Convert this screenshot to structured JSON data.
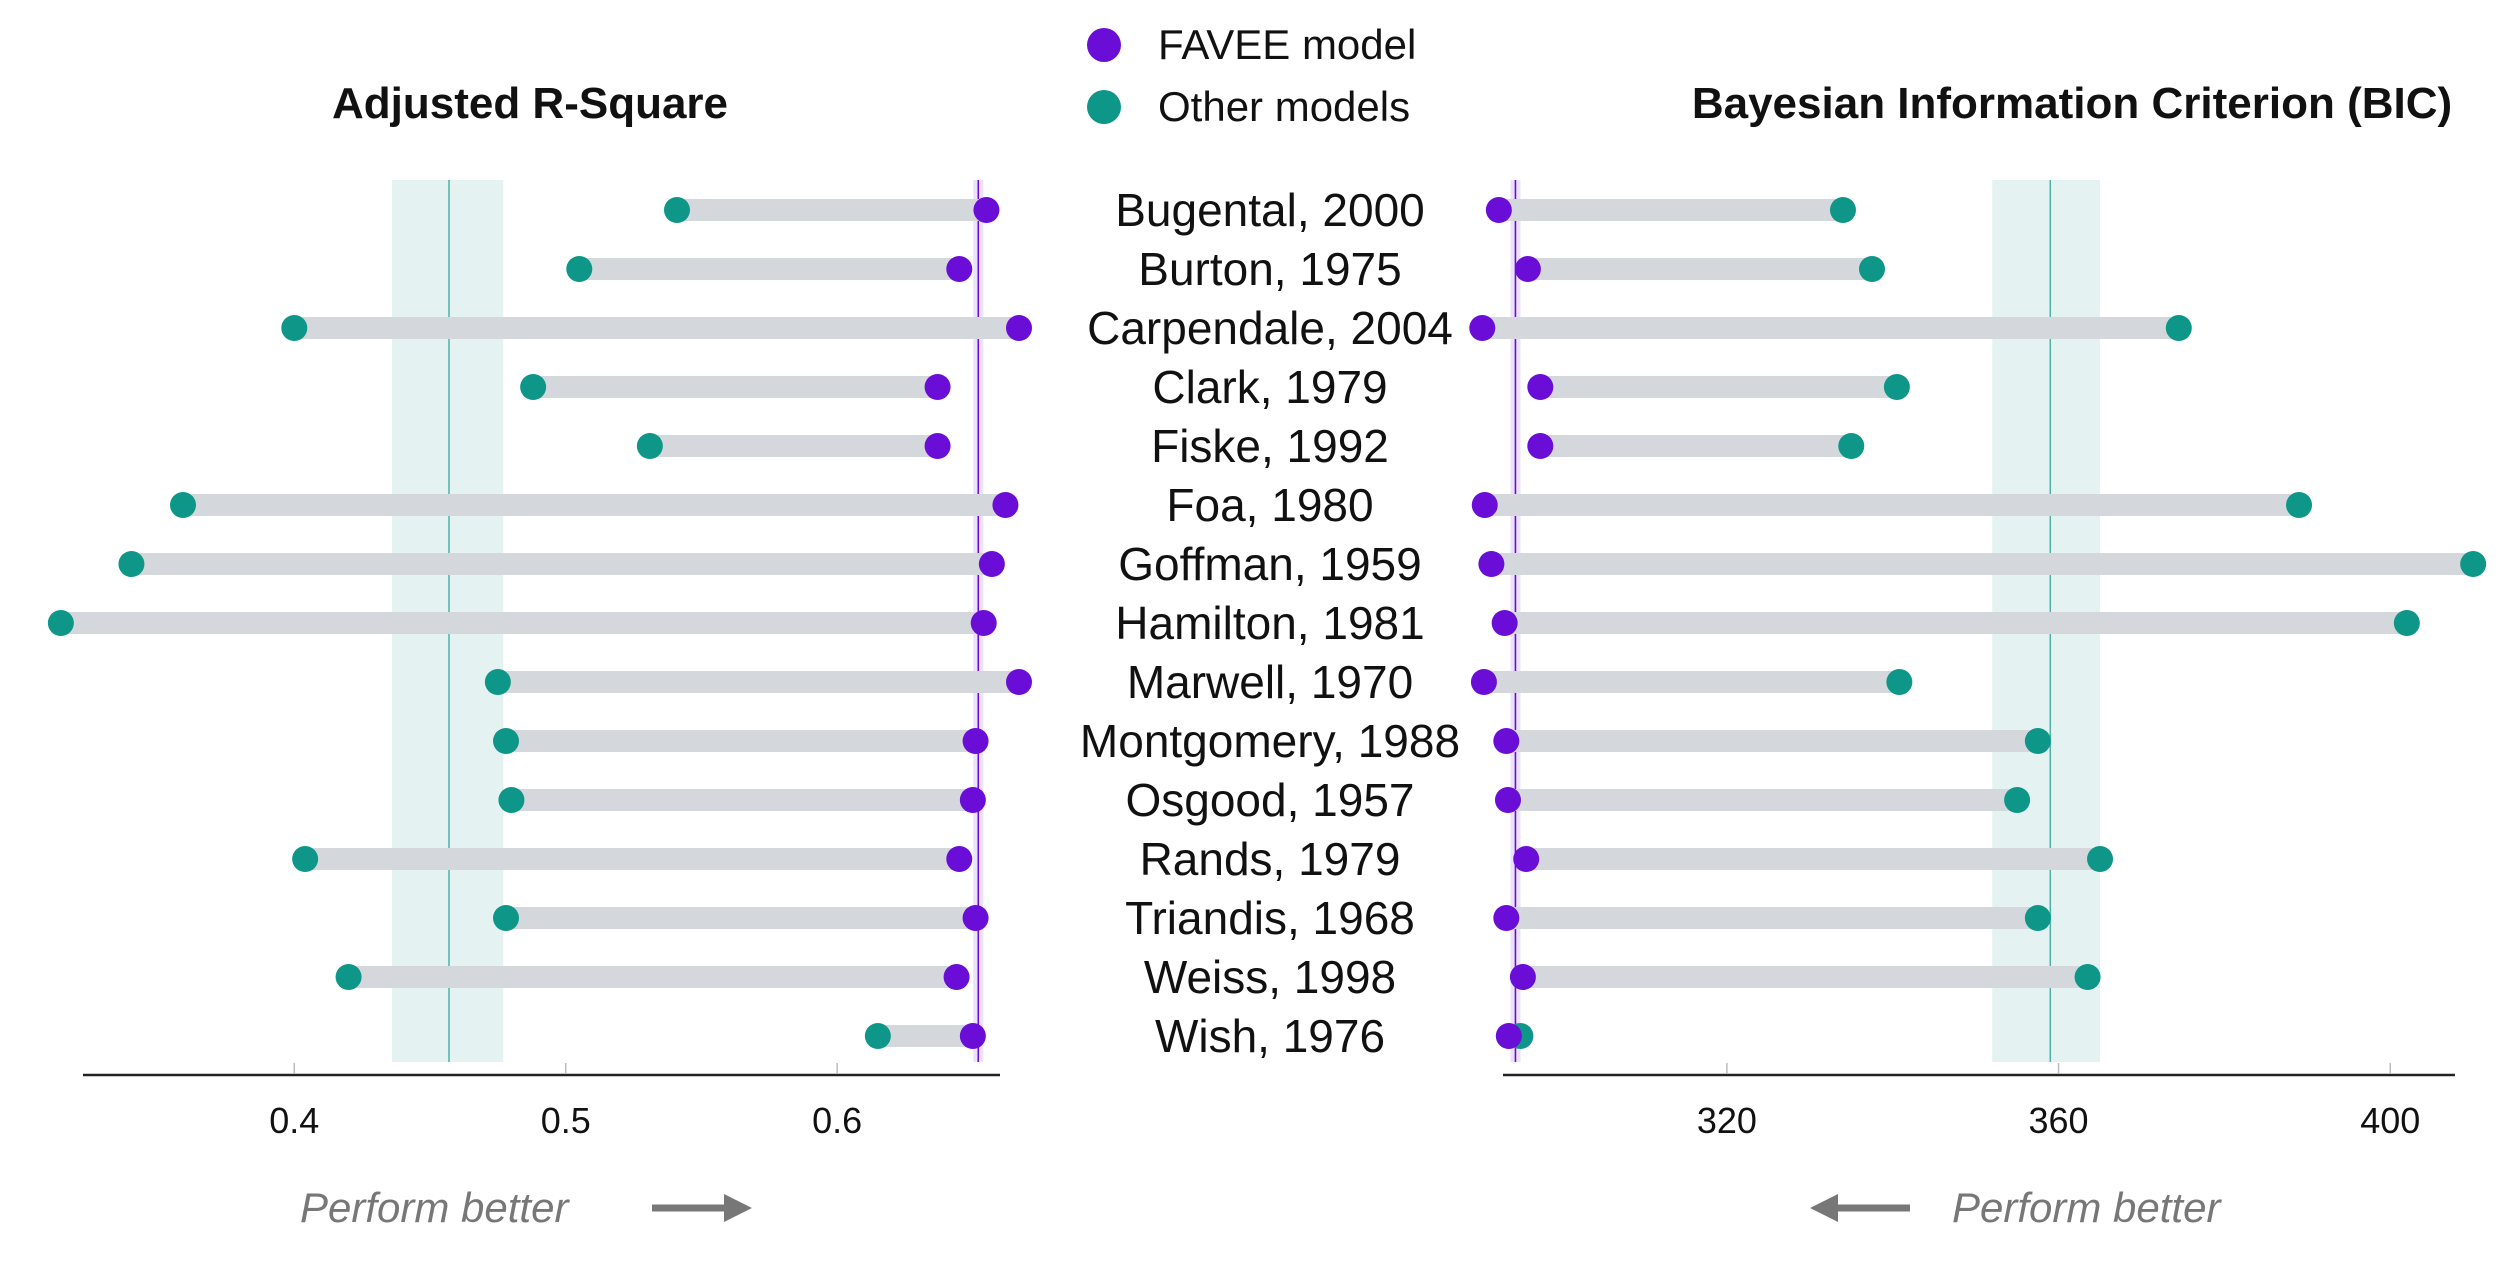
{
  "legend": {
    "favee": "FAVEE model",
    "other": "Other models"
  },
  "colors": {
    "favee": "#6a0dd6",
    "other": "#0e9688",
    "connector": "#d4d8dc",
    "band": "#e4f3f1",
    "axis": "#222222",
    "note": "#777777"
  },
  "notes": {
    "left": "Perform better",
    "right": "Perform better"
  },
  "chart_data": [
    {
      "type": "dumbbell",
      "title": "Adjusted R-Square",
      "xlim": [
        0.31,
        0.66
      ],
      "xticks": [
        0.4,
        0.5,
        0.6
      ],
      "tick_labels": [
        "0.4",
        "0.5",
        "0.6"
      ],
      "favee_reference": 0.652,
      "other_mean": 0.457,
      "other_band": [
        0.436,
        0.477
      ],
      "better_direction": "right",
      "categories": [
        "Bugental, 2000",
        "Burton, 1975",
        "Carpendale, 2004",
        "Clark, 1979",
        "Fiske, 1992",
        "Foa, 1980",
        "Goffman, 1959",
        "Hamilton, 1981",
        "Marwell, 1970",
        "Montgomery, 1988",
        "Osgood, 1957",
        "Rands, 1979",
        "Triandis, 1968",
        "Weiss, 1998",
        "Wish, 1976"
      ],
      "series": [
        {
          "name": "FAVEE model",
          "values": [
            0.655,
            0.645,
            0.667,
            0.637,
            0.637,
            0.662,
            0.657,
            0.654,
            0.667,
            0.651,
            0.65,
            0.645,
            0.651,
            0.644,
            0.65
          ]
        },
        {
          "name": "Other models",
          "values": [
            0.541,
            0.505,
            0.4,
            0.488,
            0.531,
            0.359,
            0.34,
            0.314,
            0.475,
            0.478,
            0.48,
            0.404,
            0.478,
            0.42,
            0.615
          ]
        }
      ]
    },
    {
      "type": "dumbbell",
      "title": "Bayesian Information Criterion (BIC)",
      "xlim": [
        293,
        406
      ],
      "xticks": [
        320,
        360,
        400
      ],
      "tick_labels": [
        "320",
        "360",
        "400"
      ],
      "favee_reference": 294.5,
      "other_mean": 359,
      "other_band": [
        352,
        365
      ],
      "better_direction": "left",
      "categories": [
        "Bugental, 2000",
        "Burton, 1975",
        "Carpendale, 2004",
        "Clark, 1979",
        "Fiske, 1992",
        "Foa, 1980",
        "Goffman, 1959",
        "Hamilton, 1981",
        "Marwell, 1970",
        "Montgomery, 1988",
        "Osgood, 1957",
        "Rands, 1979",
        "Triandis, 1968",
        "Weiss, 1998",
        "Wish, 1976"
      ],
      "series": [
        {
          "name": "FAVEE model",
          "values": [
            292.5,
            296,
            290.5,
            297.5,
            297.5,
            290.8,
            291.6,
            293.2,
            290.7,
            293.4,
            293.6,
            295.8,
            293.4,
            295.4,
            293.7
          ]
        },
        {
          "name": "Other models",
          "values": [
            334,
            337.5,
            374.5,
            340.5,
            335,
            389,
            410,
            402,
            340.8,
            357.5,
            355,
            365,
            357.5,
            363.5,
            295.1
          ]
        }
      ]
    }
  ]
}
